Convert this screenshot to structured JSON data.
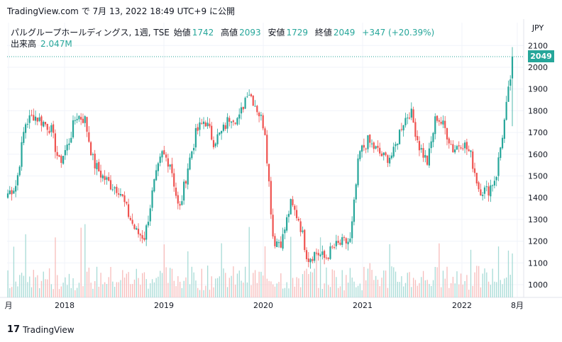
{
  "header": {
    "brand": "TradingView.com",
    "de": "で",
    "date": "7月 13, 2022 18:49 UTC+9",
    "ni": "に公開"
  },
  "legend": {
    "symbol": "パルグループホールディングス, 1週, TSE",
    "open_label": "始値",
    "open": "1742",
    "high_label": "高値",
    "high": "2093",
    "low_label": "安値",
    "low": "1729",
    "close_label": "終値",
    "close": "2049",
    "change": "+347 (+20.39%)",
    "volume_label": "出来高",
    "volume": "2.047M"
  },
  "price_label": "2049",
  "footer": {
    "logo": "17",
    "brand": "TradingView"
  },
  "colors": {
    "up": "#26a69a",
    "down": "#ef5350",
    "grid": "#f0f3fa",
    "text": "#131722"
  },
  "chart_data": {
    "type": "candlestick",
    "interval": "weekly",
    "currency": "JPY",
    "ylim": [
      950,
      2150
    ],
    "y_ticks": [
      1000,
      1100,
      1200,
      1300,
      1400,
      1500,
      1600,
      1700,
      1800,
      1900,
      2000,
      2100
    ],
    "x_ticks": [
      "月",
      "2018",
      "2019",
      "2020",
      "2021",
      "2022",
      "8月"
    ],
    "last_close": 2049,
    "approx_close_path": [
      [
        "2017-08",
        1420
      ],
      [
        "2017-09",
        1460
      ],
      [
        "2017-10",
        1740
      ],
      [
        "2017-11",
        1780
      ],
      [
        "2017-12",
        1750
      ],
      [
        "2018-01",
        1720
      ],
      [
        "2018-02",
        1560
      ],
      [
        "2018-03",
        1640
      ],
      [
        "2018-04",
        1780
      ],
      [
        "2018-05",
        1760
      ],
      [
        "2018-06",
        1560
      ],
      [
        "2018-07",
        1500
      ],
      [
        "2018-08",
        1460
      ],
      [
        "2018-09",
        1440
      ],
      [
        "2018-10",
        1330
      ],
      [
        "2018-11",
        1240
      ],
      [
        "2018-12",
        1220
      ],
      [
        "2019-01",
        1450
      ],
      [
        "2019-02",
        1600
      ],
      [
        "2019-03",
        1560
      ],
      [
        "2019-04",
        1330
      ],
      [
        "2019-05",
        1540
      ],
      [
        "2019-06",
        1700
      ],
      [
        "2019-07",
        1760
      ],
      [
        "2019-08",
        1660
      ],
      [
        "2019-09",
        1700
      ],
      [
        "2019-10",
        1780
      ],
      [
        "2019-11",
        1760
      ],
      [
        "2019-12",
        1900
      ],
      [
        "2020-01",
        1820
      ],
      [
        "2020-02",
        1720
      ],
      [
        "2020-03",
        1200
      ],
      [
        "2020-04",
        1200
      ],
      [
        "2020-05",
        1370
      ],
      [
        "2020-06",
        1300
      ],
      [
        "2020-07",
        1120
      ],
      [
        "2020-08",
        1150
      ],
      [
        "2020-09",
        1120
      ],
      [
        "2020-10",
        1170
      ],
      [
        "2020-11",
        1190
      ],
      [
        "2020-12",
        1200
      ],
      [
        "2021-01",
        1600
      ],
      [
        "2021-02",
        1660
      ],
      [
        "2021-03",
        1620
      ],
      [
        "2021-04",
        1580
      ],
      [
        "2021-05",
        1600
      ],
      [
        "2021-06",
        1740
      ],
      [
        "2021-07",
        1800
      ],
      [
        "2021-08",
        1640
      ],
      [
        "2021-09",
        1560
      ],
      [
        "2021-10",
        1780
      ],
      [
        "2021-11",
        1720
      ],
      [
        "2021-12",
        1620
      ],
      [
        "2022-01",
        1660
      ],
      [
        "2022-02",
        1600
      ],
      [
        "2022-03",
        1440
      ],
      [
        "2022-04",
        1430
      ],
      [
        "2022-05",
        1500
      ],
      [
        "2022-06",
        1760
      ],
      [
        "2022-07",
        2049
      ]
    ]
  }
}
